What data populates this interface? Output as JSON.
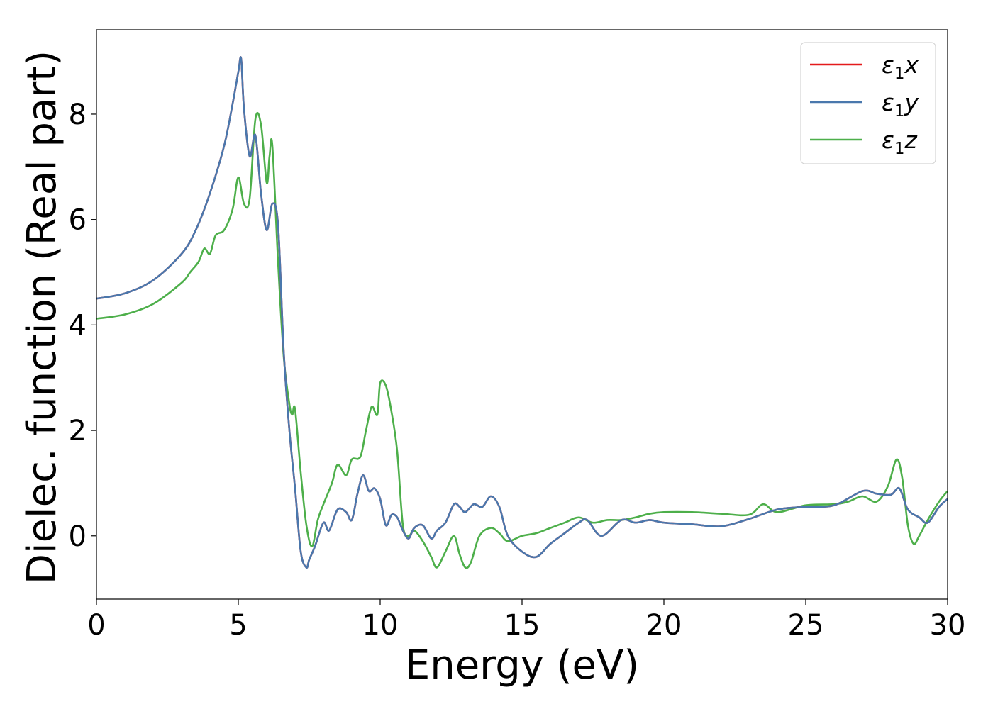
{
  "chart_data": {
    "type": "line",
    "title": "",
    "xlabel": "Energy (eV)",
    "ylabel": "Dielec. function (Real part)",
    "xlim": [
      0,
      30
    ],
    "ylim": [
      -1.2,
      9.6
    ],
    "xticks": [
      0,
      5,
      10,
      15,
      20,
      25,
      30
    ],
    "yticks": [
      0,
      2,
      4,
      6,
      8
    ],
    "grid": false,
    "legend_position": "top-right",
    "series": [
      {
        "name": "ε₁x",
        "legend_main": "ε",
        "legend_sub": "1",
        "legend_suffix": "x",
        "color": "#e41a1c",
        "x": [
          0,
          1,
          2,
          3,
          3.5,
          4,
          4.5,
          4.8,
          5.0,
          5.1,
          5.2,
          5.4,
          5.6,
          5.8,
          6.0,
          6.2,
          6.4,
          6.6,
          6.8,
          7.0,
          7.2,
          7.4,
          7.5,
          7.7,
          8.0,
          8.2,
          8.5,
          8.8,
          9.0,
          9.2,
          9.4,
          9.6,
          9.8,
          10.0,
          10.2,
          10.4,
          10.6,
          10.8,
          11.0,
          11.2,
          11.5,
          11.8,
          12.0,
          12.3,
          12.6,
          12.8,
          13.0,
          13.3,
          13.6,
          13.9,
          14.2,
          14.5,
          15.0,
          15.5,
          16.0,
          16.5,
          17.0,
          17.3,
          17.8,
          18.5,
          19.0,
          19.5,
          20.0,
          21.0,
          22.0,
          23.0,
          24.0,
          25.0,
          26.0,
          27.0,
          27.5,
          28.0,
          28.3,
          28.6,
          29.0,
          29.3,
          29.7,
          30.0
        ],
        "values": [
          4.5,
          4.6,
          4.85,
          5.35,
          5.8,
          6.5,
          7.4,
          8.2,
          8.8,
          9.05,
          8.1,
          7.2,
          7.6,
          6.5,
          5.8,
          6.3,
          5.9,
          3.5,
          2.0,
          0.9,
          -0.3,
          -0.6,
          -0.45,
          -0.2,
          0.25,
          0.1,
          0.5,
          0.45,
          0.3,
          0.8,
          1.15,
          0.85,
          0.9,
          0.7,
          0.2,
          0.4,
          0.35,
          0.1,
          -0.05,
          0.15,
          0.2,
          -0.05,
          0.1,
          0.25,
          0.6,
          0.55,
          0.45,
          0.6,
          0.55,
          0.75,
          0.55,
          0.0,
          -0.3,
          -0.4,
          -0.15,
          0.05,
          0.25,
          0.3,
          0.0,
          0.3,
          0.25,
          0.3,
          0.25,
          0.22,
          0.18,
          0.32,
          0.5,
          0.55,
          0.58,
          0.85,
          0.8,
          0.78,
          0.9,
          0.5,
          0.35,
          0.25,
          0.55,
          0.7
        ]
      },
      {
        "name": "ε₁y",
        "legend_main": "ε",
        "legend_sub": "1",
        "legend_suffix": "y",
        "color": "#4a78ad",
        "x": [
          0,
          1,
          2,
          3,
          3.5,
          4,
          4.5,
          4.8,
          5.0,
          5.1,
          5.2,
          5.4,
          5.6,
          5.8,
          6.0,
          6.2,
          6.4,
          6.6,
          6.8,
          7.0,
          7.2,
          7.4,
          7.5,
          7.7,
          8.0,
          8.2,
          8.5,
          8.8,
          9.0,
          9.2,
          9.4,
          9.6,
          9.8,
          10.0,
          10.2,
          10.4,
          10.6,
          10.8,
          11.0,
          11.2,
          11.5,
          11.8,
          12.0,
          12.3,
          12.6,
          12.8,
          13.0,
          13.3,
          13.6,
          13.9,
          14.2,
          14.5,
          15.0,
          15.5,
          16.0,
          16.5,
          17.0,
          17.3,
          17.8,
          18.5,
          19.0,
          19.5,
          20.0,
          21.0,
          22.0,
          23.0,
          24.0,
          25.0,
          26.0,
          27.0,
          27.5,
          28.0,
          28.3,
          28.6,
          29.0,
          29.3,
          29.7,
          30.0
        ],
        "values": [
          4.5,
          4.6,
          4.85,
          5.35,
          5.8,
          6.5,
          7.4,
          8.2,
          8.8,
          9.05,
          8.1,
          7.2,
          7.6,
          6.5,
          5.8,
          6.3,
          5.9,
          3.5,
          2.0,
          0.9,
          -0.3,
          -0.6,
          -0.45,
          -0.2,
          0.25,
          0.1,
          0.5,
          0.45,
          0.3,
          0.8,
          1.15,
          0.85,
          0.9,
          0.7,
          0.2,
          0.4,
          0.35,
          0.1,
          -0.05,
          0.15,
          0.2,
          -0.05,
          0.1,
          0.25,
          0.6,
          0.55,
          0.45,
          0.6,
          0.55,
          0.75,
          0.55,
          0.0,
          -0.3,
          -0.4,
          -0.15,
          0.05,
          0.25,
          0.3,
          0.0,
          0.3,
          0.25,
          0.3,
          0.25,
          0.22,
          0.18,
          0.32,
          0.5,
          0.55,
          0.58,
          0.85,
          0.8,
          0.78,
          0.9,
          0.5,
          0.35,
          0.25,
          0.55,
          0.7
        ]
      },
      {
        "name": "ε₁z",
        "legend_main": "ε",
        "legend_sub": "1",
        "legend_suffix": "z",
        "color": "#4daf4a",
        "x": [
          0,
          1,
          2,
          3,
          3.3,
          3.6,
          3.8,
          4.0,
          4.2,
          4.5,
          4.8,
          5.0,
          5.2,
          5.4,
          5.6,
          5.8,
          6.0,
          6.1,
          6.2,
          6.4,
          6.6,
          6.8,
          6.9,
          7.0,
          7.2,
          7.4,
          7.6,
          7.8,
          8.0,
          8.3,
          8.5,
          8.8,
          9.0,
          9.3,
          9.5,
          9.7,
          9.9,
          10.0,
          10.2,
          10.4,
          10.6,
          10.8,
          11.0,
          11.2,
          11.5,
          11.8,
          12.0,
          12.3,
          12.6,
          12.8,
          13.0,
          13.2,
          13.5,
          13.9,
          14.2,
          14.5,
          15.0,
          15.5,
          16.0,
          16.5,
          17.0,
          17.5,
          18.0,
          18.5,
          19.0,
          19.5,
          20.0,
          21.0,
          22.0,
          23.0,
          23.5,
          24.0,
          25.0,
          26.0,
          26.5,
          27.0,
          27.5,
          27.9,
          28.2,
          28.4,
          28.6,
          28.8,
          29.0,
          29.3,
          29.7,
          30.0
        ],
        "values": [
          4.12,
          4.2,
          4.4,
          4.8,
          5.0,
          5.2,
          5.45,
          5.35,
          5.7,
          5.8,
          6.2,
          6.8,
          6.3,
          6.4,
          7.9,
          7.8,
          6.7,
          7.2,
          7.4,
          5.2,
          3.4,
          2.5,
          2.3,
          2.4,
          1.2,
          0.2,
          -0.2,
          0.3,
          0.6,
          1.0,
          1.35,
          1.15,
          1.45,
          1.5,
          2.0,
          2.45,
          2.3,
          2.9,
          2.85,
          2.35,
          1.6,
          0.2,
          0.0,
          0.1,
          -0.1,
          -0.4,
          -0.6,
          -0.3,
          0.0,
          -0.35,
          -0.6,
          -0.5,
          0.0,
          0.15,
          0.05,
          -0.1,
          0.0,
          0.05,
          0.15,
          0.25,
          0.35,
          0.25,
          0.3,
          0.3,
          0.35,
          0.42,
          0.45,
          0.45,
          0.42,
          0.4,
          0.6,
          0.45,
          0.58,
          0.6,
          0.65,
          0.75,
          0.65,
          0.95,
          1.45,
          1.1,
          0.2,
          -0.15,
          0.0,
          0.3,
          0.65,
          0.85
        ]
      }
    ]
  }
}
